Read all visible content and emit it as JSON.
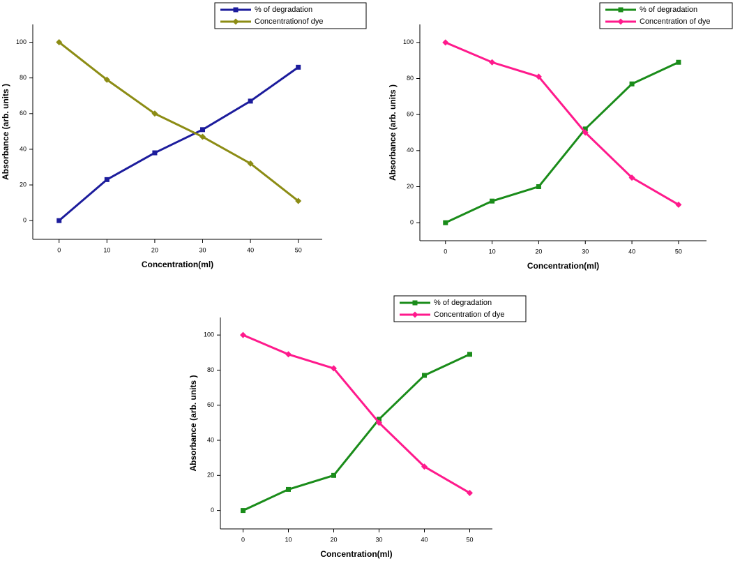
{
  "chart_data": [
    {
      "type": "line",
      "xlabel": "Concentration(ml)",
      "ylabel": "Absorbance (arb. units )",
      "x": [
        0,
        10,
        20,
        30,
        40,
        50
      ],
      "series": [
        {
          "name": "% of degradation",
          "color": "#1c1c9c",
          "marker": "square",
          "values": [
            0,
            23,
            38,
            51,
            67,
            86
          ]
        },
        {
          "name": "Concentrationof dye",
          "color": "#8c8c14",
          "marker": "diamond",
          "values": [
            100,
            79,
            60,
            47,
            32,
            11
          ]
        }
      ],
      "xlim": [
        -5.5,
        55
      ],
      "ylim": [
        -10.5,
        110
      ],
      "xticks": [
        0,
        10,
        20,
        30,
        40,
        50
      ],
      "yticks": [
        0,
        20,
        40,
        60,
        80,
        100
      ]
    },
    {
      "type": "line",
      "xlabel": "Concentration(ml)",
      "ylabel": "Absorbance (arb. units )",
      "x": [
        0,
        10,
        20,
        30,
        40,
        50
      ],
      "series": [
        {
          "name": "% of degradation",
          "color": "#1a8c1a",
          "marker": "square",
          "values": [
            0,
            12,
            20,
            52,
            77,
            89
          ]
        },
        {
          "name": "Concentration of dye",
          "color": "#ff1a8c",
          "marker": "diamond",
          "values": [
            100,
            89,
            81,
            50,
            25,
            10
          ]
        }
      ],
      "xlim": [
        -5.5,
        56
      ],
      "ylim": [
        -10,
        110
      ],
      "xticks": [
        0,
        10,
        20,
        30,
        40,
        50
      ],
      "yticks": [
        0,
        20,
        40,
        60,
        80,
        100
      ]
    },
    {
      "type": "line",
      "xlabel": "Concentration(ml)",
      "ylabel": "Absorbance (arb. units )",
      "x": [
        0,
        10,
        20,
        30,
        40,
        50
      ],
      "series": [
        {
          "name": "% of degradation",
          "color": "#1a8c1a",
          "marker": "square",
          "values": [
            0,
            12,
            20,
            52,
            77,
            89
          ]
        },
        {
          "name": "Concentration of dye",
          "color": "#ff1a8c",
          "marker": "diamond",
          "values": [
            100,
            89,
            81,
            50,
            25,
            10
          ]
        }
      ],
      "xlim": [
        -5,
        55
      ],
      "ylim": [
        -10.5,
        110
      ],
      "xticks": [
        0,
        10,
        20,
        30,
        40,
        50
      ],
      "yticks": [
        0,
        20,
        40,
        60,
        80,
        100
      ]
    }
  ]
}
